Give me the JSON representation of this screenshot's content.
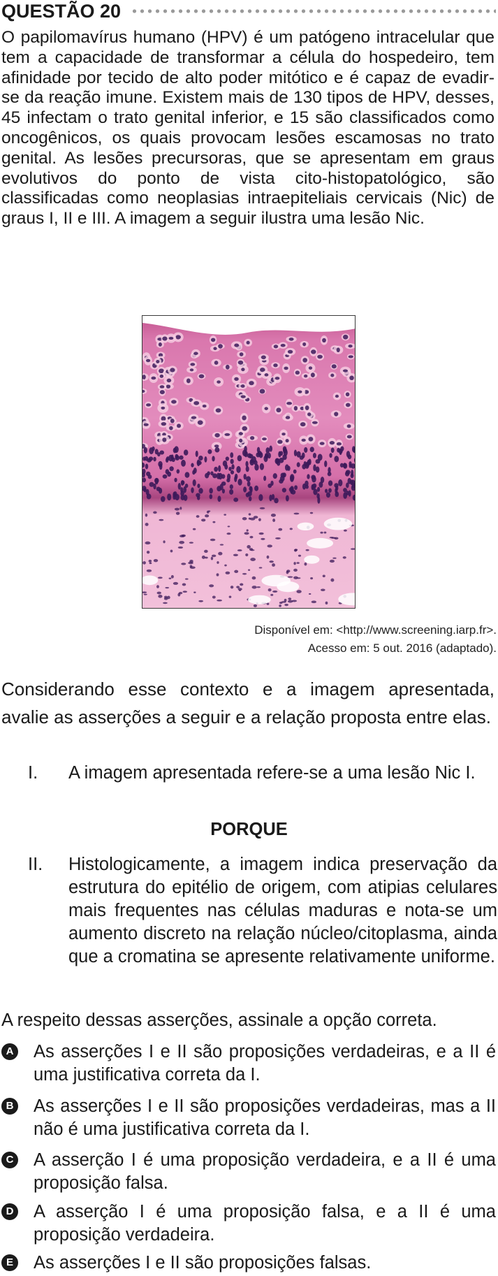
{
  "question": {
    "title": "QUESTÃO 20",
    "stem": "O papilomavírus humano (HPV) é um patógeno intracelular que tem a capacidade de transformar a célula do hospedeiro, tem afinidade por tecido de alto poder mitótico e é capaz de evadir-se da reação imune. Existem mais de 130 tipos de HPV, desses, 45 infectam o trato genital inferior, e 15 são classificados como oncogênicos, os quais provocam lesões escamosas no trato genital. As lesões precursoras, que se apresentam em graus evolutivos do ponto de vista cito-histopatológico, são classificadas como neoplasias intraepiteliais cervicais (Nic) de graus I, II e III. A imagem a seguir ilustra uma lesão Nic."
  },
  "figure": {
    "source_line1": "Disponível em: <http://www.screening.iarp.fr>.",
    "source_line2": "Acesso em: 5 out. 2016 (adaptado)."
  },
  "context": "Considerando esse contexto e a imagem apresentada, avalie as asserções a seguir e a relação proposta entre elas.",
  "assertions": [
    {
      "num": "I.",
      "text": "A imagem apresentada refere-se a uma lesão Nic I."
    },
    {
      "num": "II.",
      "text": "Histologicamente, a imagem indica preservação da estrutura do epitélio de origem, com atipias celulares mais frequentes nas células maduras e nota-se um aumento discreto na relação núcleo/citoplasma, ainda que a cromatina se apresente relativamente uniforme."
    }
  ],
  "connector": "PORQUE",
  "prompt": "A respeito dessas asserções, assinale a opção correta.",
  "options": [
    {
      "letter": "A",
      "text": "As asserções I e II são proposições verdadeiras, e a II é uma justificativa correta da I."
    },
    {
      "letter": "B",
      "text": "As asserções I e II são proposições verdadeiras, mas a II não é uma justificativa correta da I."
    },
    {
      "letter": "C",
      "text": "A asserção I é uma proposição verdadeira, e a II é uma proposição falsa."
    },
    {
      "letter": "D",
      "text": "A asserção I é uma proposição falsa, e a II é uma proposição verdadeira."
    },
    {
      "letter": "E",
      "text": "As asserções I e II são proposições falsas."
    }
  ],
  "colors": {
    "tissue_pink": "#e88cc0",
    "nucleus_purple": "#3c1a5a",
    "badge": "#1a1a1a",
    "dot_rule": "#9a9a9a"
  }
}
